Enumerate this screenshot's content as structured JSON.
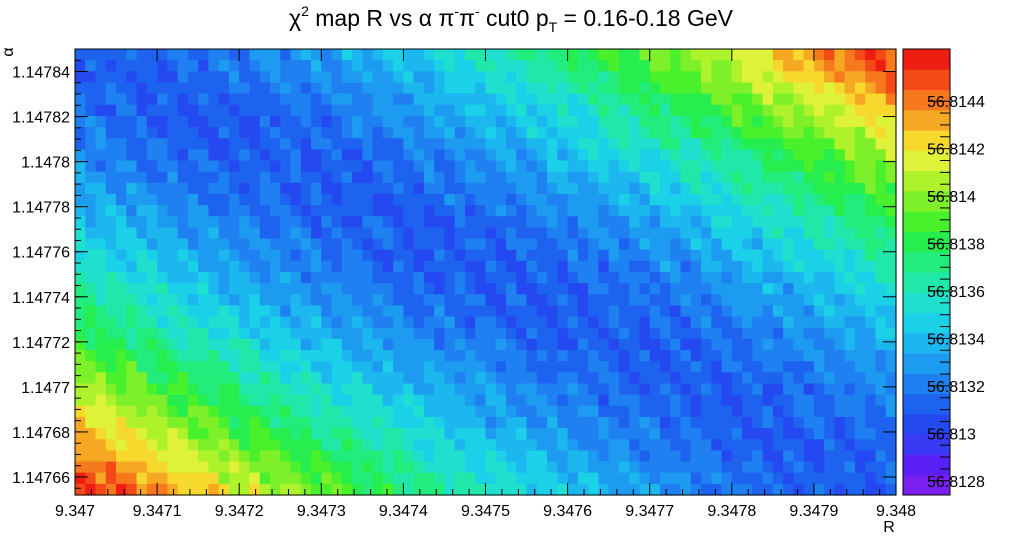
{
  "chart_data": {
    "type": "heatmap",
    "title_parts": {
      "chi": "χ",
      "sq": "2",
      "mid": " map R vs α π",
      "sup1": "-",
      "pi": "π",
      "sup2": "-",
      "cut": " cut0 p",
      "sub": "T",
      "range": " = 0.16-0.18 GeV"
    },
    "xlabel": "R",
    "ylabel": "α",
    "xlim": [
      9.347,
      9.348
    ],
    "ylim": [
      1.147652,
      1.14785
    ],
    "x_ticks": [
      {
        "value": 9.347,
        "label": "9.347"
      },
      {
        "value": 9.3471,
        "label": "9.3471"
      },
      {
        "value": 9.3472,
        "label": "9.3472"
      },
      {
        "value": 9.3473,
        "label": "9.3473"
      },
      {
        "value": 9.3474,
        "label": "9.3474"
      },
      {
        "value": 9.3475,
        "label": "9.3475"
      },
      {
        "value": 9.3476,
        "label": "9.3476"
      },
      {
        "value": 9.3477,
        "label": "9.3477"
      },
      {
        "value": 9.3478,
        "label": "9.3478"
      },
      {
        "value": 9.3479,
        "label": "9.3479"
      },
      {
        "value": 9.348,
        "label": "9.348"
      }
    ],
    "y_ticks": [
      {
        "value": 1.14766,
        "label": "1.14766"
      },
      {
        "value": 1.14768,
        "label": "1.14768"
      },
      {
        "value": 1.1477,
        "label": "1.1477"
      },
      {
        "value": 1.14772,
        "label": "1.14772"
      },
      {
        "value": 1.14774,
        "label": "1.14774"
      },
      {
        "value": 1.14776,
        "label": "1.14776"
      },
      {
        "value": 1.14778,
        "label": "1.14778"
      },
      {
        "value": 1.1478,
        "label": "1.1478"
      },
      {
        "value": 1.14782,
        "label": "1.14782"
      },
      {
        "value": 1.14784,
        "label": "1.14784"
      }
    ],
    "zlim": [
      56.81274,
      56.81462
    ],
    "z_ticks": [
      {
        "value": 56.8128,
        "label": "56.8128"
      },
      {
        "value": 56.813,
        "label": "56.813"
      },
      {
        "value": 56.8132,
        "label": "56.8132"
      },
      {
        "value": 56.8134,
        "label": "56.8134"
      },
      {
        "value": 56.8136,
        "label": "56.8136"
      },
      {
        "value": 56.8138,
        "label": "56.8138"
      },
      {
        "value": 56.814,
        "label": "56.814"
      },
      {
        "value": 56.8142,
        "label": "56.8142"
      },
      {
        "value": 56.8144,
        "label": "56.8144"
      }
    ],
    "palette": [
      "#7a1ff2",
      "#5a1ff7",
      "#3a3af5",
      "#2449f0",
      "#1e63f0",
      "#1f80f2",
      "#1d9bf0",
      "#1cb7ee",
      "#1ad1e8",
      "#1fe0cf",
      "#1fe8a8",
      "#21ec7c",
      "#26ee4e",
      "#49f02c",
      "#7df02a",
      "#aef22c",
      "#dff23a",
      "#f7d92e",
      "#f7a823",
      "#f6791e",
      "#f44a18",
      "#f01e12"
    ],
    "surface": {
      "grid": "80x40",
      "description_of_values": "chi2 minimum band runs diagonally from upper-left to lower-right; maxima at lower-left and upper-right corners",
      "z_corner_lower_left": 56.8145,
      "z_corner_upper_right": 56.8145,
      "z_valley_min": 56.8131,
      "valley_axis": [
        [
          9.347,
          1.14785
        ],
        [
          9.348,
          1.14765
        ]
      ]
    }
  }
}
